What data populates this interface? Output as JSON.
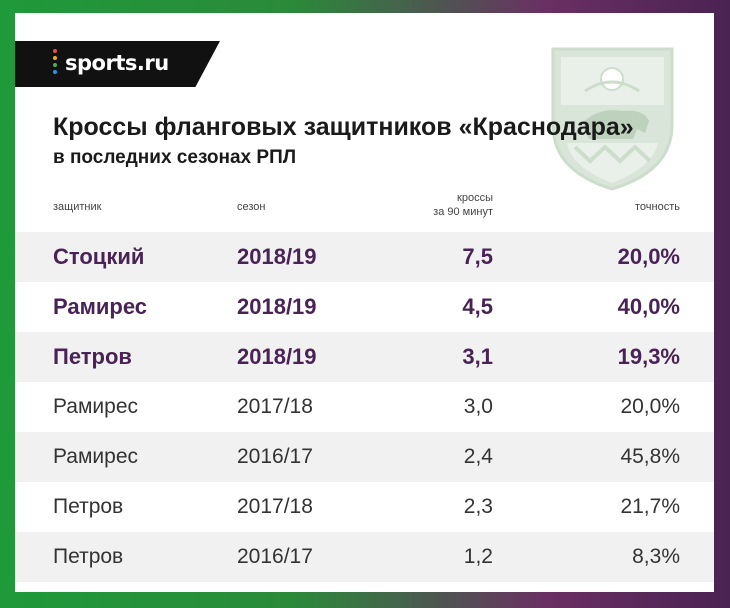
{
  "brand": {
    "logo_text": "sports.ru",
    "dot_colors": [
      "#e94d4d",
      "#f5a623",
      "#4caf50",
      "#2196f3"
    ]
  },
  "colors": {
    "highlight_text": "#4a2356",
    "row_alt_bg": "#f1f1f1",
    "bg_left": "#1f9a3a",
    "bg_right": "#6a2f63"
  },
  "chart_data": {
    "type": "table",
    "title": "Кроссы фланговых защитников «Краснодара»",
    "subtitle": "в последних сезонах РПЛ",
    "columns": {
      "player": "защитник",
      "season": "сезон",
      "crosses_line1": "кроссы",
      "crosses_line2": "за 90 минут",
      "accuracy": "точность"
    },
    "rows": [
      {
        "player": "Стоцкий",
        "season": "2018/19",
        "crosses": "7,5",
        "accuracy": "20,0%",
        "highlight": true
      },
      {
        "player": "Рамирес",
        "season": "2018/19",
        "crosses": "4,5",
        "accuracy": "40,0%",
        "highlight": true
      },
      {
        "player": "Петров",
        "season": "2018/19",
        "crosses": "3,1",
        "accuracy": "19,3%",
        "highlight": true
      },
      {
        "player": "Рамирес",
        "season": "2017/18",
        "crosses": "3,0",
        "accuracy": "20,0%",
        "highlight": false
      },
      {
        "player": "Рамирес",
        "season": "2016/17",
        "crosses": "2,4",
        "accuracy": "45,8%",
        "highlight": false
      },
      {
        "player": "Петров",
        "season": "2017/18",
        "crosses": "2,3",
        "accuracy": "21,7%",
        "highlight": false
      },
      {
        "player": "Петров",
        "season": "2016/17",
        "crosses": "1,2",
        "accuracy": "8,3%",
        "highlight": false
      }
    ]
  }
}
